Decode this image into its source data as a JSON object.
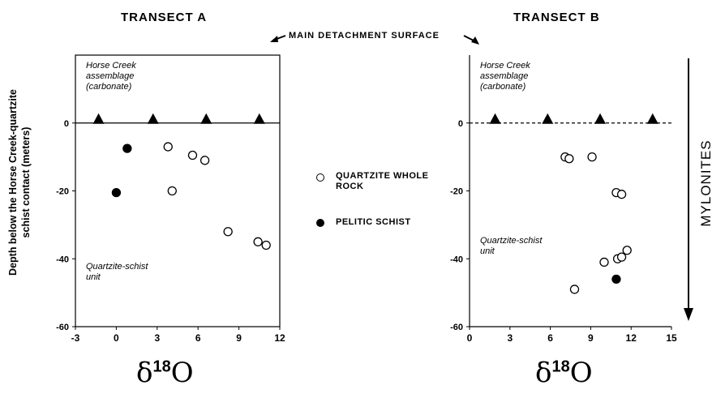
{
  "figure": {
    "title_a": "TRANSECT A",
    "title_b": "TRANSECT B",
    "center_label": "MAIN DETACHMENT SURFACE",
    "y_label": "Depth below the Horse Creek-quartzite schist contact (meters)",
    "right_label": "MYLONITES",
    "x_label_symbol": "δ",
    "x_label_mass": "18",
    "x_label_element": "O",
    "legend": {
      "open_label": "QUARTZITE WHOLE ROCK",
      "filled_label": "PELITIC SCHIST"
    }
  },
  "chart_data": [
    {
      "type": "scatter",
      "title": "TRANSECT A",
      "xlabel": "δ18O",
      "ylabel": "Depth below the Horse Creek-quartzite schist contact (meters)",
      "xlim": [
        -3,
        12
      ],
      "ylim": [
        -60,
        20
      ],
      "x_ticks": [
        "-3",
        "0",
        "3",
        "6",
        "9",
        "12"
      ],
      "y_ticks": [
        "0",
        "-20",
        "-40",
        "-60"
      ],
      "contact_line": "solid",
      "annotations": {
        "upper_unit": [
          "Horse Creek",
          "assemblage",
          "(carbonate)"
        ],
        "lower_unit": [
          "Quartzite-schist",
          "unit"
        ]
      },
      "triangles_x": [
        -1.3,
        2.7,
        6.6,
        10.5
      ],
      "series": [
        {
          "name": "QUARTZITE WHOLE ROCK",
          "marker": "open",
          "points": [
            [
              3.8,
              -7
            ],
            [
              4.1,
              -20
            ],
            [
              5.6,
              -9.5
            ],
            [
              6.5,
              -11
            ],
            [
              8.2,
              -32
            ],
            [
              10.4,
              -35
            ],
            [
              11.0,
              -36
            ]
          ]
        },
        {
          "name": "PELITIC SCHIST",
          "marker": "filled",
          "points": [
            [
              0.8,
              -7.5
            ],
            [
              0.0,
              -20.5
            ]
          ]
        }
      ]
    },
    {
      "type": "scatter",
      "title": "TRANSECT B",
      "xlabel": "δ18O",
      "xlim": [
        0,
        15
      ],
      "ylim": [
        -60,
        20
      ],
      "x_ticks": [
        "0",
        "3",
        "6",
        "9",
        "12",
        "15"
      ],
      "y_ticks": [
        "0",
        "-20",
        "-40",
        "-60"
      ],
      "contact_line": "dashed",
      "annotations": {
        "upper_unit": [
          "Horse Creek",
          "assemblage",
          "(carbonate)"
        ],
        "lower_unit": [
          "Quartzite-schist",
          "unit"
        ]
      },
      "triangles_x": [
        1.9,
        5.8,
        9.7,
        13.6
      ],
      "series": [
        {
          "name": "QUARTZITE WHOLE ROCK",
          "marker": "open",
          "points": [
            [
              7.1,
              -10
            ],
            [
              7.4,
              -10.5
            ],
            [
              9.1,
              -10
            ],
            [
              10.9,
              -20.5
            ],
            [
              11.3,
              -21
            ],
            [
              10.0,
              -41
            ],
            [
              11.0,
              -40
            ],
            [
              11.3,
              -39.5
            ],
            [
              11.7,
              -37.5
            ],
            [
              7.8,
              -49
            ]
          ]
        },
        {
          "name": "PELITIC SCHIST",
          "marker": "filled",
          "points": [
            [
              10.9,
              -46
            ]
          ]
        }
      ]
    }
  ]
}
